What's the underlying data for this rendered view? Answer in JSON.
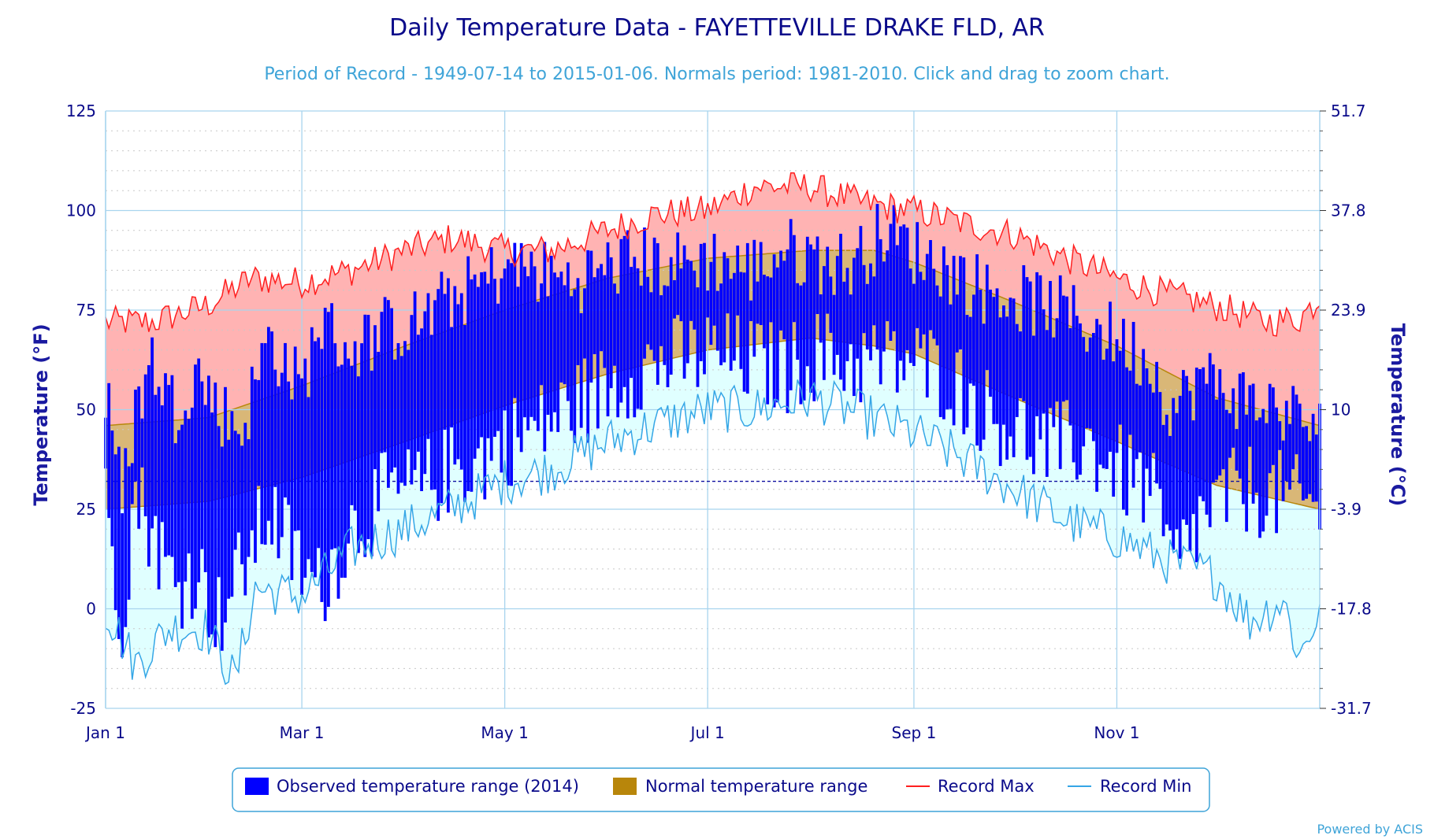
{
  "title": "Daily Temperature Data - FAYETTEVILLE DRAKE FLD, AR",
  "subtitle": "Period of Record - 1949-07-14 to 2015-01-06. Normals period: 1981-2010. Click and drag to zoom chart.",
  "credit": "Powered by ACIS",
  "colors": {
    "observed": "#0000ff",
    "normal": "#b8860b",
    "record_max": "#ff2020",
    "record_min": "#35a6e6",
    "record_max_fill": "#ffb3b3",
    "record_min_fill": "#e0ffff",
    "grid": "#a8d4ee",
    "axis_text": "#0a0a8a"
  },
  "chart_data": {
    "type": "area",
    "title": "Daily Temperature Data - FAYETTEVILLE DRAKE FLD, AR",
    "subtitle": "Period of Record - 1949-07-14 to 2015-01-06. Normals period: 1981-2010. Click and drag to zoom chart.",
    "x_unit": "day of year",
    "xlim": [
      1,
      366
    ],
    "x_ticks": [
      {
        "day": 1,
        "label": "Jan 1"
      },
      {
        "day": 60,
        "label": "Mar 1"
      },
      {
        "day": 121,
        "label": "May 1"
      },
      {
        "day": 182,
        "label": "Jul 1"
      },
      {
        "day": 244,
        "label": "Sep 1"
      },
      {
        "day": 305,
        "label": "Nov 1"
      }
    ],
    "ylabel": "Temperature (°F)",
    "ylabel_right": "Temperature (°C)",
    "ylim": [
      -25,
      125
    ],
    "y_ticks": [
      -25,
      0,
      25,
      50,
      75,
      100,
      125
    ],
    "y_right_ticks": [
      "-31.7",
      "-17.8",
      "-3.9",
      "10",
      "23.9",
      "37.8",
      "51.7"
    ],
    "freezing_line": 32,
    "grid": true,
    "legend_position": "bottom",
    "series": [
      {
        "name": "Observed temperature range (2014)",
        "kind": "range-bars",
        "note": "one bar per day, low to high",
        "anchors": [
          {
            "day": 1,
            "low": 26,
            "high": 54
          },
          {
            "day": 6,
            "low": -2,
            "high": 28
          },
          {
            "day": 10,
            "low": 30,
            "high": 50
          },
          {
            "day": 15,
            "low": 20,
            "high": 62
          },
          {
            "day": 22,
            "low": 5,
            "high": 50
          },
          {
            "day": 28,
            "low": 10,
            "high": 60
          },
          {
            "day": 35,
            "low": -2,
            "high": 50
          },
          {
            "day": 42,
            "low": 10,
            "high": 45
          },
          {
            "day": 50,
            "low": 25,
            "high": 68
          },
          {
            "day": 60,
            "low": 10,
            "high": 55
          },
          {
            "day": 65,
            "low": 5,
            "high": 72
          },
          {
            "day": 75,
            "low": 20,
            "high": 65
          },
          {
            "day": 85,
            "low": 28,
            "high": 70
          },
          {
            "day": 95,
            "low": 30,
            "high": 72
          },
          {
            "day": 105,
            "low": 35,
            "high": 78
          },
          {
            "day": 115,
            "low": 38,
            "high": 82
          },
          {
            "day": 121,
            "low": 42,
            "high": 86
          },
          {
            "day": 130,
            "low": 45,
            "high": 85
          },
          {
            "day": 140,
            "low": 50,
            "high": 82
          },
          {
            "day": 150,
            "low": 55,
            "high": 85
          },
          {
            "day": 160,
            "low": 60,
            "high": 88
          },
          {
            "day": 170,
            "low": 62,
            "high": 86
          },
          {
            "day": 182,
            "low": 64,
            "high": 88
          },
          {
            "day": 195,
            "low": 62,
            "high": 85
          },
          {
            "day": 205,
            "low": 60,
            "high": 90
          },
          {
            "day": 215,
            "low": 64,
            "high": 88
          },
          {
            "day": 225,
            "low": 62,
            "high": 86
          },
          {
            "day": 235,
            "low": 62,
            "high": 95
          },
          {
            "day": 244,
            "low": 62,
            "high": 90
          },
          {
            "day": 255,
            "low": 58,
            "high": 85
          },
          {
            "day": 265,
            "low": 50,
            "high": 80
          },
          {
            "day": 275,
            "low": 45,
            "high": 78
          },
          {
            "day": 285,
            "low": 40,
            "high": 76
          },
          {
            "day": 295,
            "low": 42,
            "high": 72
          },
          {
            "day": 305,
            "low": 35,
            "high": 68
          },
          {
            "day": 315,
            "low": 30,
            "high": 62
          },
          {
            "day": 322,
            "low": 10,
            "high": 50
          },
          {
            "day": 330,
            "low": 22,
            "high": 58
          },
          {
            "day": 338,
            "low": 28,
            "high": 55
          },
          {
            "day": 345,
            "low": 30,
            "high": 52
          },
          {
            "day": 355,
            "low": 28,
            "high": 50
          },
          {
            "day": 366,
            "low": 25,
            "high": 45
          }
        ]
      },
      {
        "name": "Normal temperature range",
        "kind": "band",
        "anchors": [
          {
            "day": 1,
            "low": 25,
            "high": 46
          },
          {
            "day": 32,
            "low": 27,
            "high": 48
          },
          {
            "day": 60,
            "low": 33,
            "high": 56
          },
          {
            "day": 91,
            "low": 42,
            "high": 66
          },
          {
            "day": 121,
            "low": 51,
            "high": 75
          },
          {
            "day": 152,
            "low": 59,
            "high": 83
          },
          {
            "day": 182,
            "low": 65,
            "high": 88
          },
          {
            "day": 213,
            "low": 68,
            "high": 90
          },
          {
            "day": 232,
            "low": 66,
            "high": 90
          },
          {
            "day": 244,
            "low": 64,
            "high": 87
          },
          {
            "day": 274,
            "low": 53,
            "high": 77
          },
          {
            "day": 305,
            "low": 42,
            "high": 66
          },
          {
            "day": 335,
            "low": 31,
            "high": 53
          },
          {
            "day": 366,
            "low": 25,
            "high": 46
          }
        ]
      },
      {
        "name": "Record Max",
        "kind": "line",
        "anchors": [
          {
            "day": 1,
            "value": 72
          },
          {
            "day": 15,
            "value": 72
          },
          {
            "day": 31,
            "value": 76
          },
          {
            "day": 45,
            "value": 83
          },
          {
            "day": 60,
            "value": 82
          },
          {
            "day": 75,
            "value": 85
          },
          {
            "day": 91,
            "value": 90
          },
          {
            "day": 105,
            "value": 93
          },
          {
            "day": 121,
            "value": 90
          },
          {
            "day": 135,
            "value": 90
          },
          {
            "day": 152,
            "value": 95
          },
          {
            "day": 166,
            "value": 99
          },
          {
            "day": 182,
            "value": 100
          },
          {
            "day": 196,
            "value": 106
          },
          {
            "day": 213,
            "value": 106
          },
          {
            "day": 228,
            "value": 102
          },
          {
            "day": 244,
            "value": 100
          },
          {
            "day": 258,
            "value": 97
          },
          {
            "day": 274,
            "value": 94
          },
          {
            "day": 290,
            "value": 88
          },
          {
            "day": 305,
            "value": 83
          },
          {
            "day": 320,
            "value": 79
          },
          {
            "day": 335,
            "value": 76
          },
          {
            "day": 350,
            "value": 72
          },
          {
            "day": 360,
            "value": 73
          },
          {
            "day": 366,
            "value": 78
          }
        ]
      },
      {
        "name": "Record Min",
        "kind": "line",
        "anchors": [
          {
            "day": 1,
            "value": 0
          },
          {
            "day": 10,
            "value": -14
          },
          {
            "day": 20,
            "value": -5
          },
          {
            "day": 31,
            "value": -5
          },
          {
            "day": 40,
            "value": -18
          },
          {
            "day": 46,
            "value": 5
          },
          {
            "day": 60,
            "value": 3
          },
          {
            "day": 75,
            "value": 15
          },
          {
            "day": 91,
            "value": 20
          },
          {
            "day": 105,
            "value": 25
          },
          {
            "day": 121,
            "value": 32
          },
          {
            "day": 135,
            "value": 35
          },
          {
            "day": 152,
            "value": 42
          },
          {
            "day": 166,
            "value": 46
          },
          {
            "day": 182,
            "value": 50
          },
          {
            "day": 196,
            "value": 50
          },
          {
            "day": 213,
            "value": 53
          },
          {
            "day": 228,
            "value": 49
          },
          {
            "day": 244,
            "value": 44
          },
          {
            "day": 258,
            "value": 38
          },
          {
            "day": 274,
            "value": 30
          },
          {
            "day": 290,
            "value": 22
          },
          {
            "day": 305,
            "value": 18
          },
          {
            "day": 320,
            "value": 12
          },
          {
            "day": 335,
            "value": 8
          },
          {
            "day": 345,
            "value": -3
          },
          {
            "day": 355,
            "value": 2
          },
          {
            "day": 360,
            "value": -12
          },
          {
            "day": 366,
            "value": 0
          }
        ]
      }
    ]
  }
}
